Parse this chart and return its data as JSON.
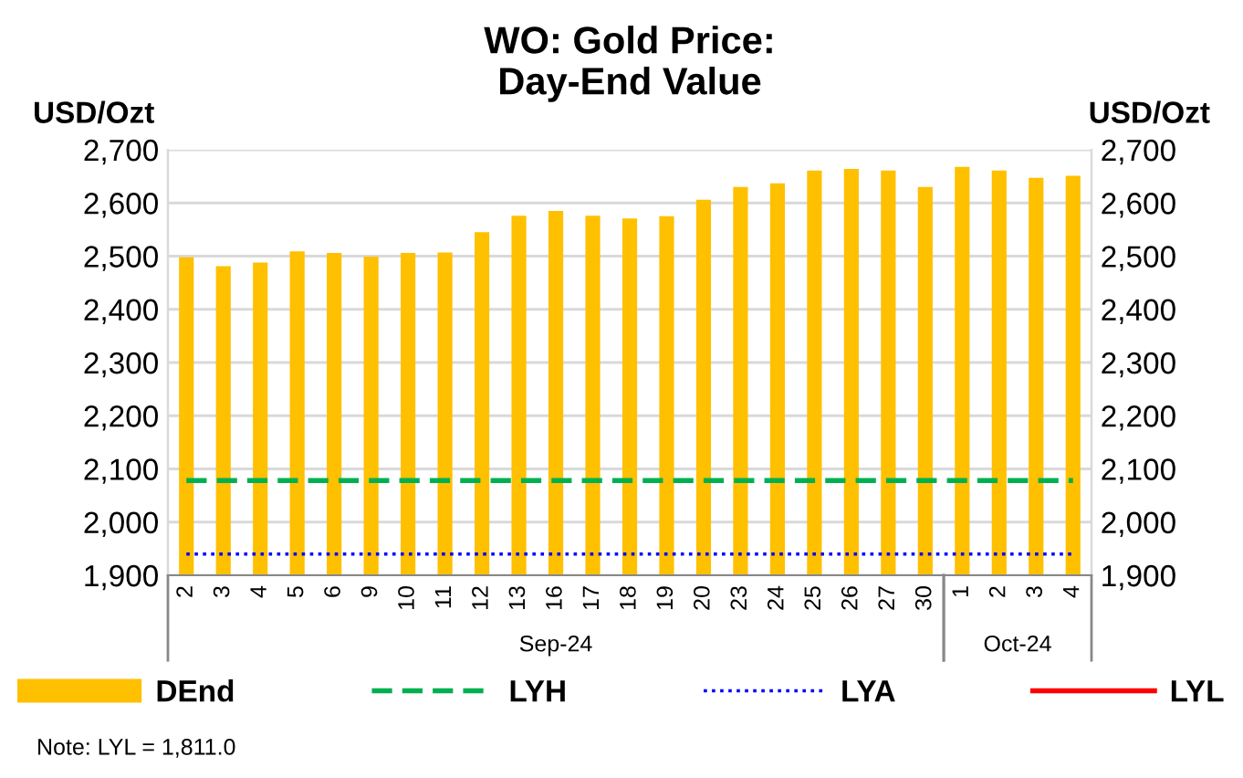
{
  "chart_data": {
    "type": "bar",
    "title": "WO: Gold Price:\nDay-End Value",
    "ylabel": "USD/Ozt",
    "y2label": "USD/Ozt",
    "categories": [
      "2",
      "3",
      "4",
      "5",
      "6",
      "9",
      "10",
      "11",
      "12",
      "13",
      "16",
      "17",
      "18",
      "19",
      "20",
      "23",
      "24",
      "25",
      "26",
      "27",
      "30",
      "1",
      "2",
      "3",
      "4"
    ],
    "series": [
      {
        "name": "DEnd",
        "color": "#ffc000",
        "values": [
          2498,
          2481,
          2488,
          2509,
          2506,
          2499,
          2506,
          2507,
          2545,
          2576,
          2585,
          2576,
          2571,
          2575,
          2606,
          2630,
          2637,
          2661,
          2664,
          2661,
          2630,
          2668,
          2661,
          2647,
          2651
        ]
      },
      {
        "name": "LYH",
        "type": "line",
        "color": "#00b050",
        "line_style": "dashed",
        "values": [
          2078,
          2078,
          2078,
          2078,
          2078,
          2078,
          2078,
          2078,
          2078,
          2078,
          2078,
          2078,
          2078,
          2078,
          2078,
          2078,
          2078,
          2078,
          2078,
          2078,
          2078,
          2078,
          2078,
          2078,
          2078
        ]
      },
      {
        "name": "LYA",
        "type": "line",
        "color": "#0000ff",
        "line_style": "dotted",
        "values": [
          1940,
          1940,
          1940,
          1940,
          1940,
          1940,
          1940,
          1940,
          1940,
          1940,
          1940,
          1940,
          1940,
          1940,
          1940,
          1940,
          1940,
          1940,
          1940,
          1940,
          1940,
          1940,
          1940,
          1940,
          1940
        ]
      },
      {
        "name": "LYL",
        "type": "line",
        "color": "#ff0000",
        "line_style": "solid",
        "values": [
          null,
          null,
          null,
          null,
          null,
          null,
          null,
          null,
          null,
          null,
          null,
          null,
          null,
          null,
          null,
          null,
          null,
          null,
          null,
          null,
          null,
          null,
          null,
          null,
          null
        ]
      }
    ],
    "ylim": [
      1900,
      2700
    ],
    "yticks": [
      {
        "value": 1900,
        "label": "1,900"
      },
      {
        "value": 2000,
        "label": "2,000"
      },
      {
        "value": 2100,
        "label": "2,100"
      },
      {
        "value": 2200,
        "label": "2,200"
      },
      {
        "value": 2300,
        "label": "2,300"
      },
      {
        "value": 2400,
        "label": "2,400"
      },
      {
        "value": 2500,
        "label": "2,500"
      },
      {
        "value": 2600,
        "label": "2,600"
      },
      {
        "value": 2700,
        "label": "2,700"
      }
    ],
    "y2lim": [
      1900,
      2700
    ],
    "y2ticks": [
      {
        "value": 1900,
        "label": "1,900"
      },
      {
        "value": 2000,
        "label": "2,000"
      },
      {
        "value": 2100,
        "label": "2,100"
      },
      {
        "value": 2200,
        "label": "2,200"
      },
      {
        "value": 2300,
        "label": "2,300"
      },
      {
        "value": 2400,
        "label": "2,400"
      },
      {
        "value": 2500,
        "label": "2,500"
      },
      {
        "value": 2600,
        "label": "2,600"
      },
      {
        "value": 2700,
        "label": "2,700"
      }
    ],
    "grid": "y",
    "legend": "bottom",
    "annotations": [
      "Sep-24",
      "Oct-24",
      "Note: LYL = 1,811.0"
    ]
  }
}
